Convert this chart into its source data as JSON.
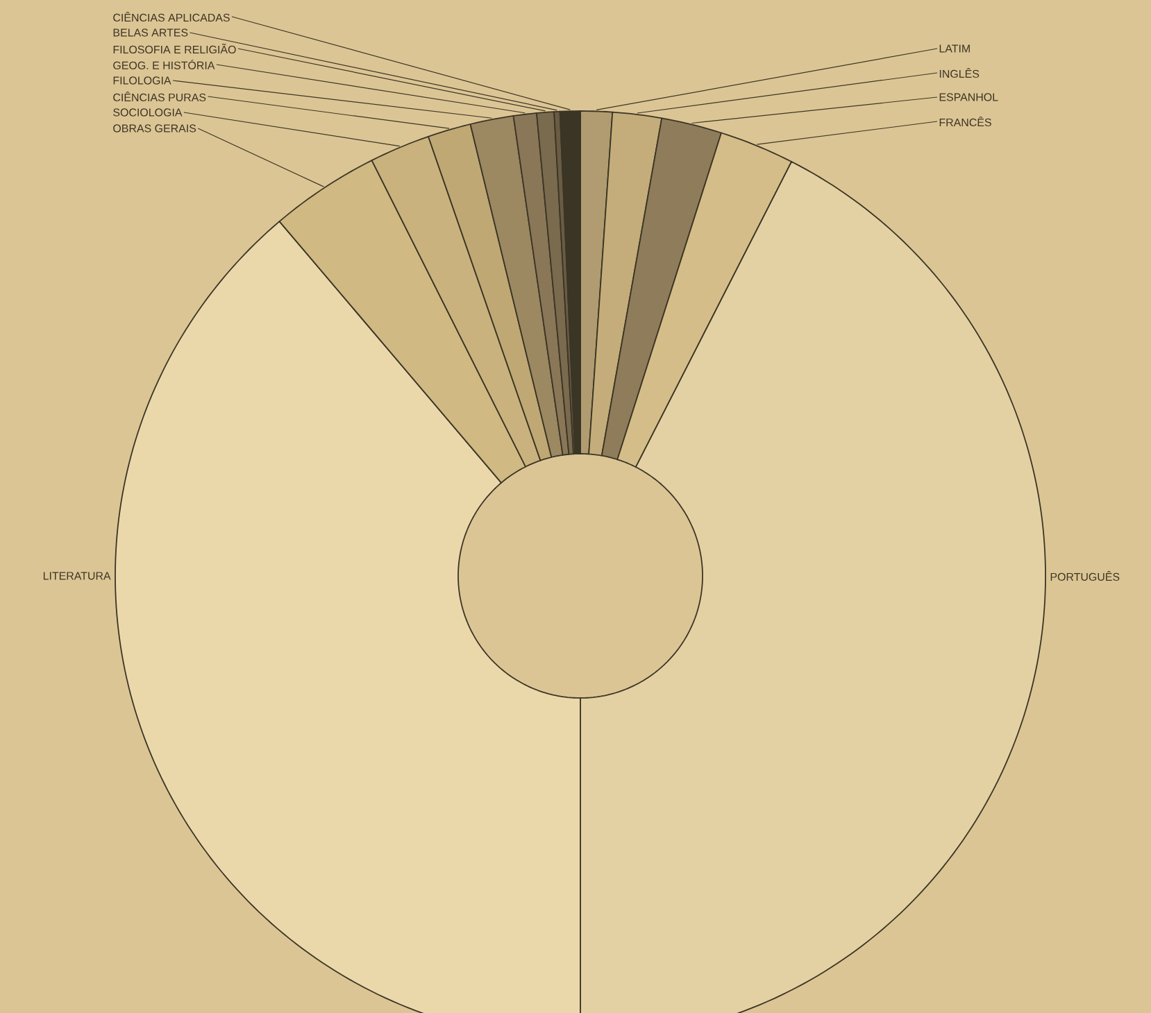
{
  "chart_data": {
    "type": "donut",
    "categories": [
      "LATIM",
      "INGLÊS",
      "ESPANHOL",
      "FRANCÊS",
      "PORTUGUÊS",
      "LITERATURA",
      "OBRAS GERAIS",
      "SOCIOLOGIA",
      "CIÊNCIAS PURAS",
      "FILOLOGIA",
      "GEOG. E HISTÓRIA",
      "FILOSOFIA E RELIGIÃO",
      "BELAS ARTES",
      "CIÊNCIAS APLICADAS"
    ],
    "values": [
      1.1,
      1.7,
      2.1,
      2.6,
      42.5,
      38.8,
      3.8,
      2.1,
      1.5,
      1.5,
      0.8,
      0.6,
      0.2,
      0.7
    ],
    "colors": [
      "#b09c70",
      "#c4ad7a",
      "#8f7c5a",
      "#d4bd88",
      "#e4d1a3",
      "#ead8ab",
      "#d0b982",
      "#c9b27d",
      "#bfa874",
      "#9c8861",
      "#8a7757",
      "#7a6a4e",
      "#6a5c44",
      "#3b3526"
    ]
  }
}
